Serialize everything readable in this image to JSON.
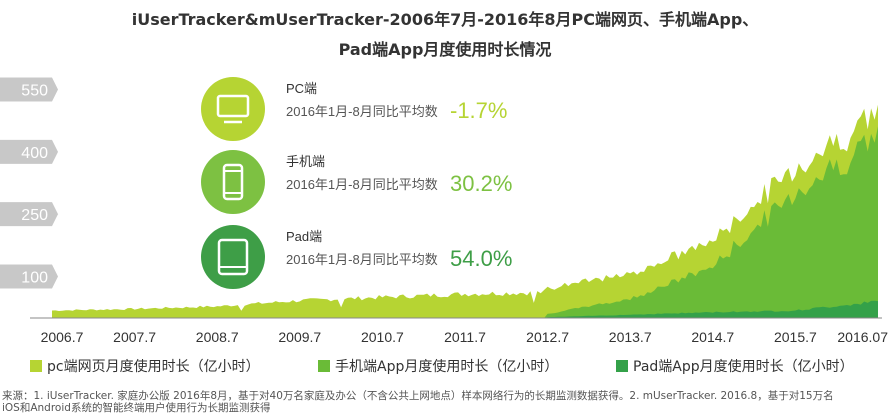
{
  "title_line1": "iUserTracker&mUserTracker-2006年7月-2016年8月PC端网页、手机端App、",
  "title_line2": "Pad端App月度使用时长情况",
  "source_line1": "来源：1. iUserTracker. 家庭办公版 2016年8月，基于对40万名家庭及办公（不含公共上网地点）样本网络行为的长期监测数据获得。2. mUserTracker. 2016.8，基于对15万名",
  "source_line2": "iOS和Android系统的智能终端用户使用行为长期监测获得",
  "colors": {
    "pc": "#b6d433",
    "mobile": "#6abb37",
    "pad": "#34a149",
    "tag": "#c8c8c8",
    "tag_text": "#ffffff"
  },
  "info_items": [
    {
      "icon": "monitor-icon",
      "label": "PC端",
      "desc": "2016年1月-8月同比平均数",
      "value": "-1.7%",
      "color": "#b6d433"
    },
    {
      "icon": "phone-icon",
      "label": "手机端",
      "desc": "2016年1月-8月同比平均数",
      "value": "30.2%",
      "color": "#7dc142"
    },
    {
      "icon": "tablet-icon",
      "label": "Pad端",
      "desc": "2016年1月-8月同比平均数",
      "value": "54.0%",
      "color": "#3e9e47"
    }
  ],
  "chart_data": {
    "type": "area",
    "stacked": true,
    "title": "iUserTracker&mUserTracker-2006年7月-2016年8月PC端网页、手机端App、Pad端App月度使用时长情况",
    "x_ticks": [
      "2006.7",
      "2007.7",
      "2008.7",
      "2009.7",
      "2010.7",
      "2011.7",
      "2012.7",
      "2013.7",
      "2014.7",
      "2015.7",
      "2016.07"
    ],
    "y_ticks": [
      100,
      250,
      400,
      550
    ],
    "ylim": [
      0,
      650
    ],
    "legend_position": "bottom",
    "series": [
      {
        "name": "pc端网页月度使用时长（亿小时）",
        "x": [
          "2006.7",
          "2007.7",
          "2008.7",
          "2009.7",
          "2010.7",
          "2011.7",
          "2012.7",
          "2013.7",
          "2014.7",
          "2015.7",
          "2016.07"
        ],
        "values": [
          18,
          22,
          28,
          42,
          50,
          58,
          62,
          60,
          62,
          60,
          56
        ]
      },
      {
        "name": "手机端App月度使用时长（亿小时）",
        "x": [
          "2012.7",
          "2013.7",
          "2014.7",
          "2015.7",
          "2016.07"
        ],
        "values": [
          8,
          38,
          110,
          285,
          395
        ]
      },
      {
        "name": "Pad端App月度使用时长（亿小时）",
        "x": [
          "2012.7",
          "2013.7",
          "2014.7",
          "2015.7",
          "2016.07"
        ],
        "values": [
          2,
          8,
          14,
          18,
          40
        ]
      }
    ]
  }
}
